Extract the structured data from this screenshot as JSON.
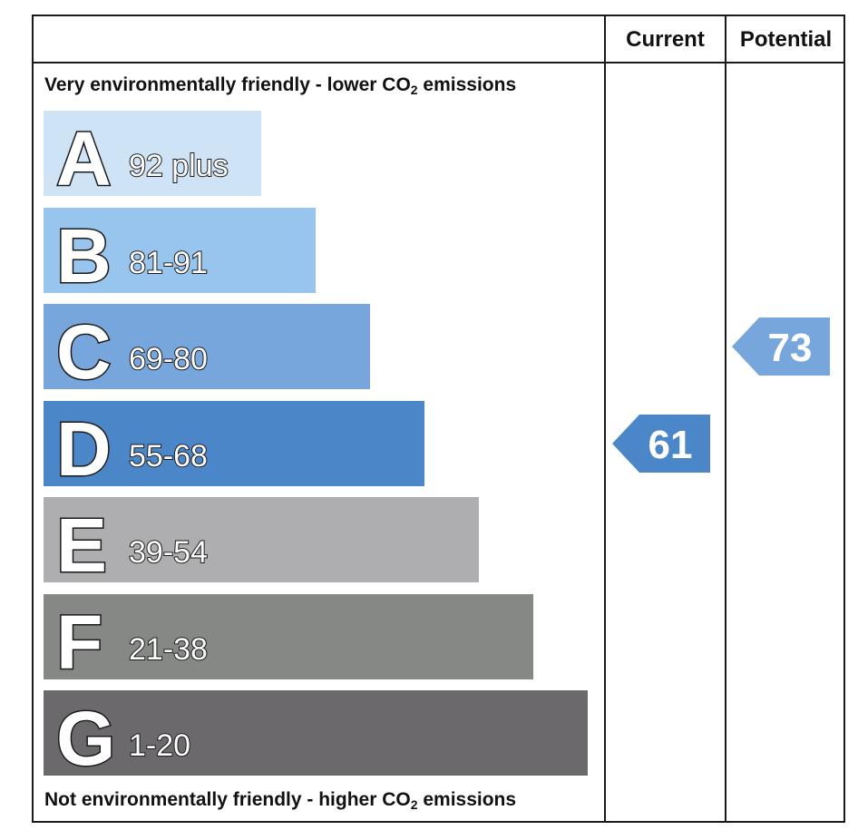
{
  "header": {
    "current_label": "Current",
    "potential_label": "Potential"
  },
  "top_caption": {
    "before": "Very environmentally friendly - lower CO",
    "sub": "2",
    "after": " emissions"
  },
  "bottom_caption": {
    "before": "Not environmentally friendly - higher CO",
    "sub": "2",
    "after": " emissions"
  },
  "bands": [
    {
      "letter": "A",
      "range": "92 plus",
      "color": "#cfe3f7"
    },
    {
      "letter": "B",
      "range": "81-91",
      "color": "#98c5ee"
    },
    {
      "letter": "C",
      "range": "69-80",
      "color": "#76a6dc"
    },
    {
      "letter": "D",
      "range": "55-68",
      "color": "#4b87c8"
    },
    {
      "letter": "E",
      "range": "39-54",
      "color": "#aeadaf"
    },
    {
      "letter": "F",
      "range": "21-38",
      "color": "#868886"
    },
    {
      "letter": "G",
      "range": "1-20",
      "color": "#6b696c"
    }
  ],
  "current": {
    "value": "61",
    "band": "D",
    "color": "#4b87c8"
  },
  "potential": {
    "value": "73",
    "band": "C",
    "color": "#76a6dc"
  }
}
